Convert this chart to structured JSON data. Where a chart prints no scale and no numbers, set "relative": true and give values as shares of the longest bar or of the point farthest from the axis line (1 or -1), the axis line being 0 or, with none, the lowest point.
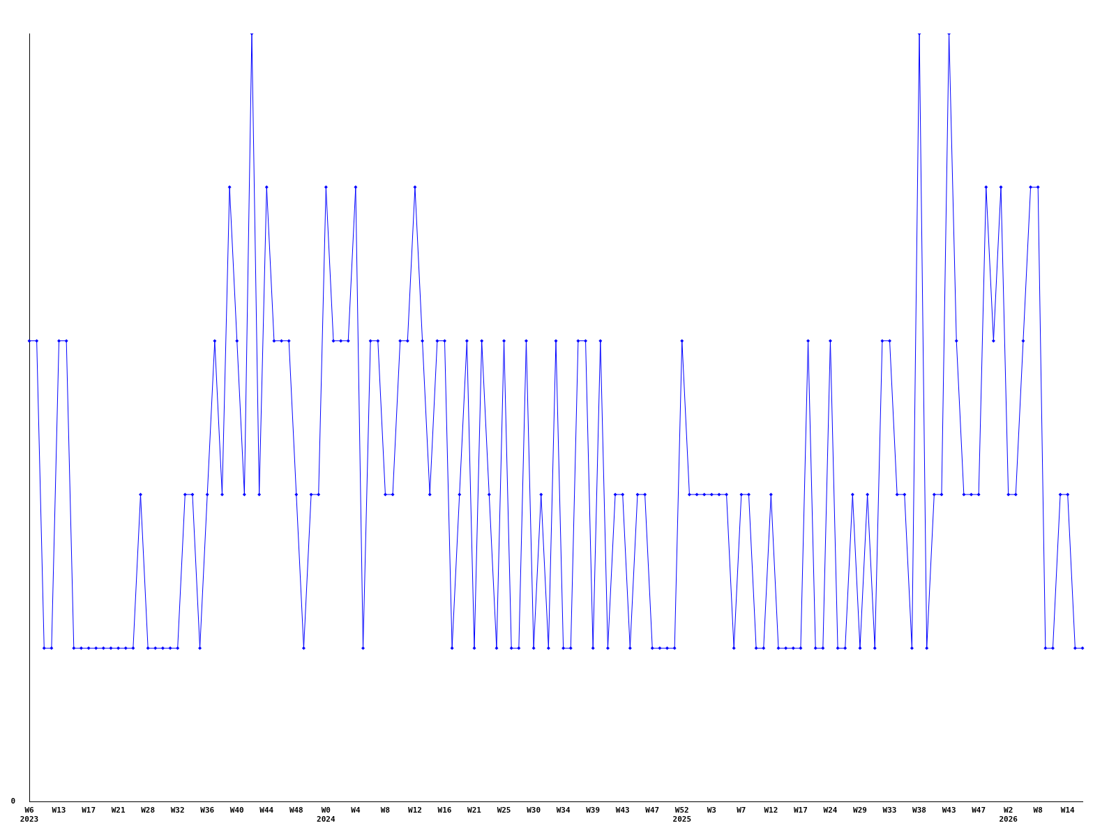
{
  "chart_data": {
    "type": "line",
    "relative": true,
    "color": "#0000ff",
    "marker": "diamond",
    "line_style": "solid",
    "grid": false,
    "legend": false,
    "tick_labels": "x",
    "annotations": [
      "0"
    ],
    "categories": [
      "W6 2023",
      null,
      null,
      null,
      "W13",
      null,
      null,
      null,
      "W17",
      null,
      null,
      null,
      "W21",
      null,
      null,
      null,
      "W28",
      null,
      null,
      null,
      "W32",
      null,
      null,
      null,
      "W36",
      null,
      null,
      null,
      "W40",
      null,
      null,
      null,
      "W44",
      null,
      null,
      null,
      "W48",
      null,
      null,
      null,
      "W0 2024",
      null,
      null,
      null,
      "W4",
      null,
      null,
      null,
      "W8",
      null,
      null,
      null,
      "W12",
      null,
      null,
      null,
      "W16",
      null,
      null,
      null,
      "W21",
      null,
      null,
      null,
      "W25",
      null,
      null,
      null,
      "W30",
      null,
      null,
      null,
      "W34",
      null,
      null,
      null,
      "W39",
      null,
      null,
      null,
      "W43",
      null,
      null,
      null,
      "W47",
      null,
      null,
      null,
      "W52 2025",
      null,
      null,
      null,
      "W3",
      null,
      null,
      null,
      "W7",
      null,
      null,
      null,
      "W12",
      null,
      null,
      null,
      "W17",
      null,
      null,
      null,
      "W24",
      null,
      null,
      null,
      "W29",
      null,
      null,
      null,
      "W33",
      null,
      null,
      null,
      "W38",
      null,
      null,
      null,
      "W43",
      null,
      null,
      null,
      "W47",
      null,
      null,
      null,
      "W2 2026",
      null,
      null,
      null,
      "W8",
      null,
      null,
      null,
      "W14",
      null,
      null
    ],
    "values": [
      0.6,
      0.6,
      0.2,
      0.2,
      0.6,
      0.6,
      0.2,
      0.2,
      0.2,
      0.2,
      0.2,
      0.2,
      0.2,
      0.2,
      0.2,
      0.4,
      0.2,
      0.2,
      0.2,
      0.2,
      0.2,
      0.4,
      0.4,
      0.2,
      0.4,
      0.6,
      0.4,
      0.8,
      0.6,
      0.4,
      1,
      0.4,
      0.8,
      0.6,
      0.6,
      0.6,
      0.4,
      0.2,
      0.4,
      0.4,
      0.8,
      0.6,
      0.6,
      0.6,
      0.8,
      0.2,
      0.6,
      0.6,
      0.4,
      0.4,
      0.6,
      0.6,
      0.8,
      0.6,
      0.4,
      0.6,
      0.6,
      0.2,
      0.4,
      0.6,
      0.2,
      0.6,
      0.4,
      0.2,
      0.6,
      0.2,
      0.2,
      0.6,
      0.2,
      0.4,
      0.2,
      0.6,
      0.2,
      0.2,
      0.6,
      0.6,
      0.2,
      0.6,
      0.2,
      0.4,
      0.4,
      0.2,
      0.4,
      0.4,
      0.2,
      0.2,
      0.2,
      0.2,
      0.6,
      0.4,
      0.4,
      0.4,
      0.4,
      0.4,
      0.4,
      0.2,
      0.4,
      0.4,
      0.2,
      0.2,
      0.4,
      0.2,
      0.2,
      0.2,
      0.2,
      0.6,
      0.2,
      0.2,
      0.6,
      0.2,
      0.2,
      0.4,
      0.2,
      0.4,
      0.2,
      0.6,
      0.6,
      0.4,
      0.4,
      0.2,
      1,
      0.2,
      0.4,
      0.4,
      1,
      0.6,
      0.4,
      0.4,
      0.4,
      0.8,
      0.6,
      0.8,
      0.4,
      0.4,
      0.6,
      0.8,
      0.8,
      0.2,
      0.2,
      0.4,
      0.4,
      0.2,
      0.2
    ]
  }
}
